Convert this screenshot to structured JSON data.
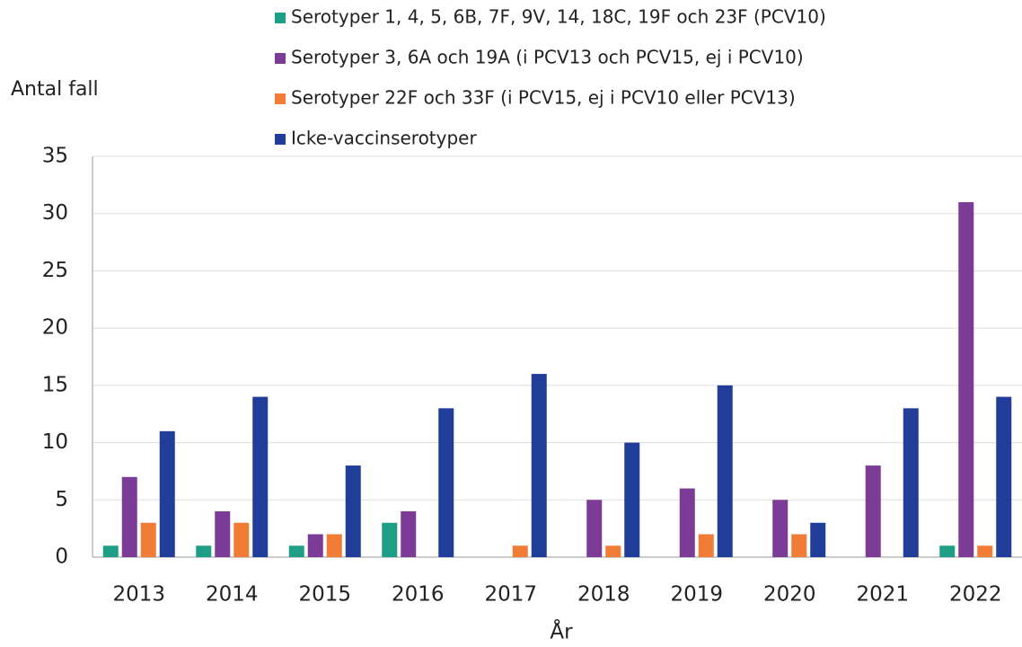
{
  "chart_data": {
    "type": "bar",
    "y_label": "Antal fall",
    "x_label": "År",
    "categories": [
      "2013",
      "2014",
      "2015",
      "2016",
      "2017",
      "2018",
      "2019",
      "2020",
      "2021",
      "2022"
    ],
    "series": [
      {
        "name": "Serotyper 1, 4, 5, 6B, 7F, 9V, 14, 18C, 19F och 23F (PCV10)",
        "color": "#1e9e86",
        "values": [
          1,
          1,
          1,
          3,
          0,
          0,
          0,
          0,
          0,
          1
        ]
      },
      {
        "name": "Serotyper 3, 6A och 19A (i PCV13 och PCV15, ej i PCV10)",
        "color": "#7b3b96",
        "values": [
          7,
          4,
          2,
          4,
          0,
          5,
          6,
          5,
          8,
          31
        ]
      },
      {
        "name": "Serotyper 22F och 33F (i PCV15, ej i PCV10 eller PCV13)",
        "color": "#f07c36",
        "values": [
          3,
          3,
          2,
          0,
          1,
          1,
          2,
          2,
          0,
          1
        ]
      },
      {
        "name": "Icke-vaccinserotyper",
        "color": "#1f3d99",
        "values": [
          11,
          14,
          8,
          13,
          16,
          10,
          15,
          3,
          13,
          14
        ]
      }
    ],
    "ylim": [
      0,
      35
    ],
    "yticks": [
      0,
      5,
      10,
      15,
      20,
      25,
      30,
      35
    ],
    "grid": true
  }
}
